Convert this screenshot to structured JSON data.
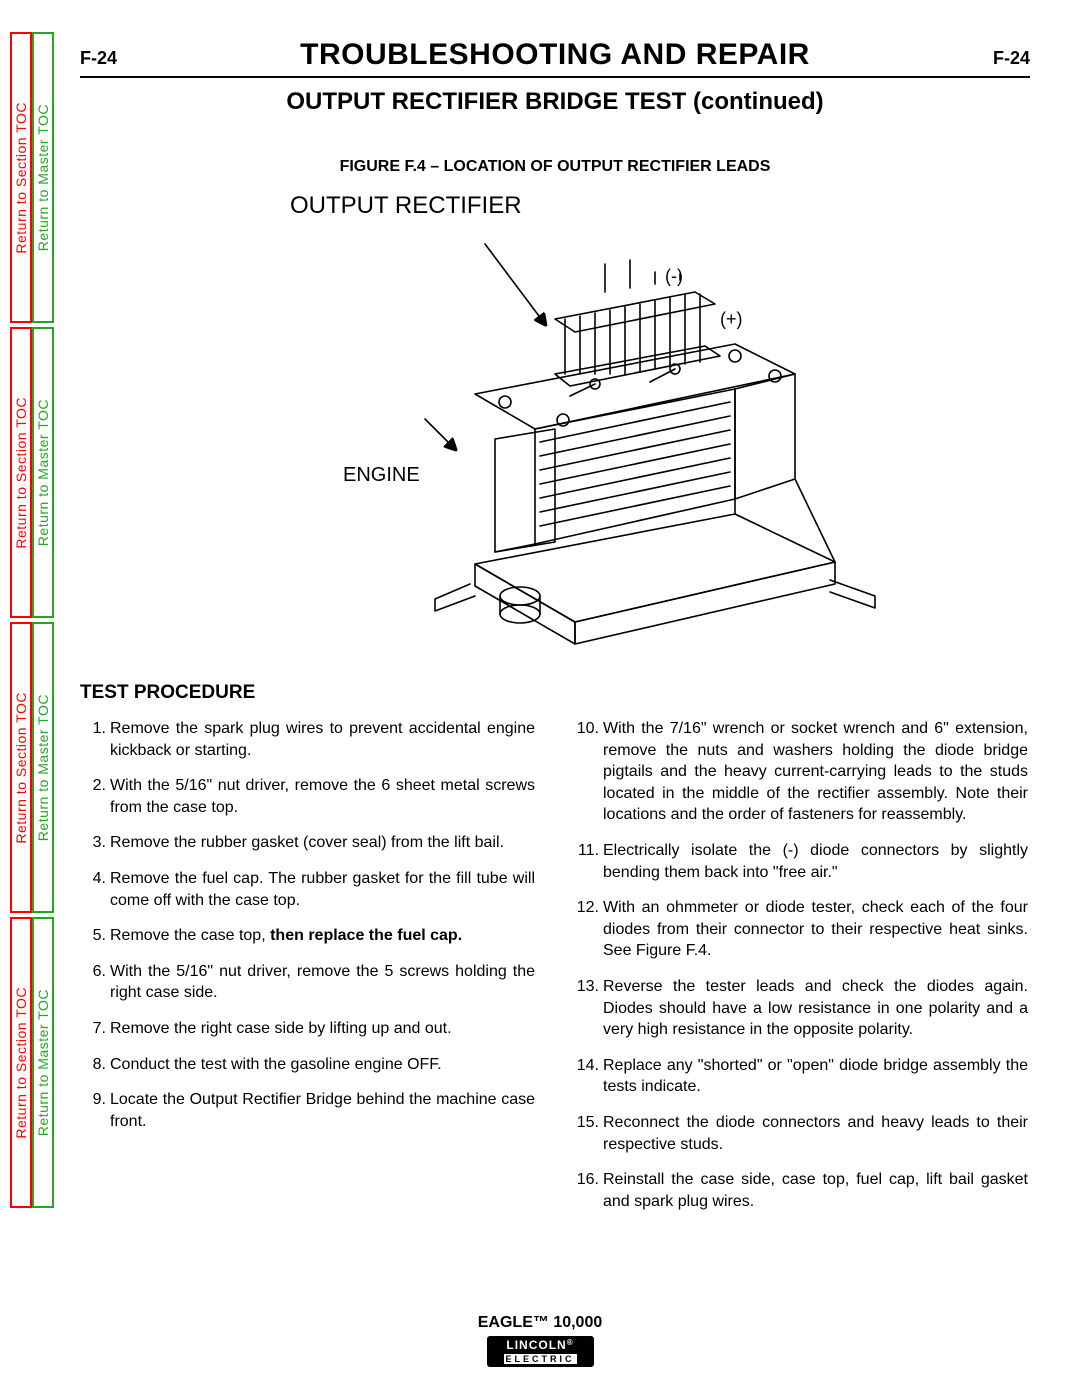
{
  "page_number": "F-24",
  "title": "TROUBLESHOOTING AND REPAIR",
  "subtitle": "OUTPUT RECTIFIER BRIDGE TEST (continued)",
  "figure": {
    "caption": "FIGURE F.4 – LOCATION OF OUTPUT RECTIFIER LEADS",
    "main_label": "OUTPUT RECTIFIER",
    "engine_label": "ENGINE",
    "neg_label": "(-)",
    "pos_label": "(+)"
  },
  "procedure_heading": "TEST PROCEDURE",
  "steps_left": [
    {
      "n": "1.",
      "t": "Remove the spark plug wires to prevent accidental engine kickback or starting."
    },
    {
      "n": "2.",
      "t": "With the 5/16\" nut driver, remove the 6 sheet metal screws from the case top."
    },
    {
      "n": "3.",
      "t": "Remove the rubber gasket (cover seal) from the lift bail."
    },
    {
      "n": "4.",
      "t": "Remove the fuel cap.  The rubber gasket for the fill tube will come off with the case top."
    },
    {
      "n": "5.",
      "t": "Remove the case top, ",
      "bold": "then replace the fuel cap."
    },
    {
      "n": "6.",
      "t": "With the 5/16\" nut driver, remove the 5 screws holding the right case side."
    },
    {
      "n": "7.",
      "t": "Remove the right case side by lifting up and out."
    },
    {
      "n": "8.",
      "t": "Conduct the test with the gasoline engine OFF."
    },
    {
      "n": "9.",
      "t": "Locate the Output Rectifier Bridge behind the machine case front."
    }
  ],
  "steps_right": [
    {
      "n": "10.",
      "t": "With the 7/16\" wrench or socket wrench and 6\" extension, remove the nuts and washers holding the diode bridge pigtails and the heavy current-carrying leads to the studs located in the middle of the rectifier assembly.  Note their locations and the order of fasteners for reassembly."
    },
    {
      "n": "11.",
      "t": "Electrically isolate the (-) diode connectors by slightly bending them back into \"free air.\""
    },
    {
      "n": "12.",
      "t": "With an ohmmeter or diode tester, check each of the four diodes from their connector to their respective heat sinks.  See Figure F.4."
    },
    {
      "n": "13.",
      "t": "Reverse the tester leads and check the diodes again.  Diodes should have a low resistance in one polarity and a very high resistance in the opposite polarity."
    },
    {
      "n": "14.",
      "t": "Replace any \"shorted\" or \"open\" diode  bridge assembly the tests indicate."
    },
    {
      "n": "15.",
      "t": "Reconnect the diode connectors and heavy leads to their respective studs."
    },
    {
      "n": "16.",
      "t": "Reinstall the case side, case top, fuel cap, lift bail gasket and spark plug wires."
    }
  ],
  "footer": {
    "model": "EAGLE™ 10,000",
    "brand": "LINCOLN",
    "sub": "ELECTRIC"
  },
  "side_tabs": {
    "section_label": "Return to Section TOC",
    "master_label": "Return to Master TOC"
  },
  "colors": {
    "section_tab": "#ff0000",
    "master_tab": "#22a722",
    "text": "#000000",
    "background": "#ffffff"
  }
}
